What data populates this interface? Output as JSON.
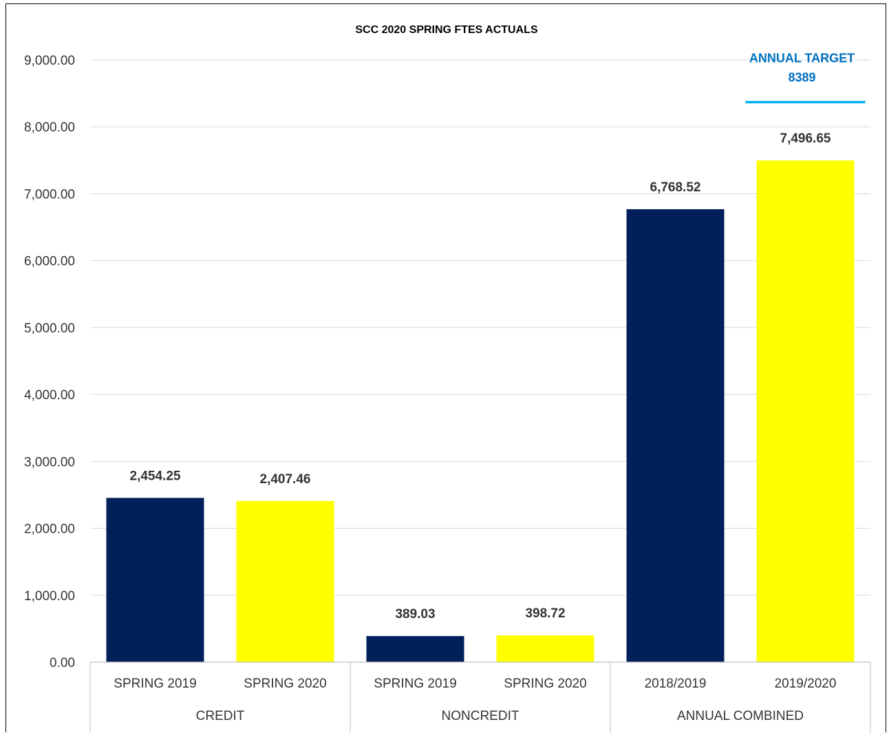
{
  "chart_data": {
    "type": "bar",
    "title": "SCC 2020 SPRING FTES ACTUALS",
    "xlabel": "",
    "ylabel": "",
    "ylim": [
      0,
      9000
    ],
    "yticks": [
      "0.00",
      "1,000.00",
      "2,000.00",
      "3,000.00",
      "4,000.00",
      "5,000.00",
      "6,000.00",
      "7,000.00",
      "8,000.00",
      "9,000.00"
    ],
    "grid": true,
    "legend": "none",
    "groups": [
      {
        "label": "CREDIT",
        "bars": [
          {
            "category": "SPRING 2019",
            "value": 2454.25,
            "label": "2,454.25",
            "color": "#001f5b"
          },
          {
            "category": "SPRING 2020",
            "value": 2407.46,
            "label": "2,407.46",
            "color": "#ffff00"
          }
        ]
      },
      {
        "label": "NONCREDIT",
        "bars": [
          {
            "category": "SPRING 2019",
            "value": 389.03,
            "label": "389.03",
            "color": "#001f5b"
          },
          {
            "category": "SPRING 2020",
            "value": 398.72,
            "label": "398.72",
            "color": "#ffff00"
          }
        ]
      },
      {
        "label": "ANNUAL COMBINED",
        "bars": [
          {
            "category": "2018/2019",
            "value": 6768.52,
            "label": "6,768.52",
            "color": "#001f5b"
          },
          {
            "category": "2019/2020",
            "value": 7496.65,
            "label": "7,496.65",
            "color": "#ffff00"
          }
        ]
      }
    ],
    "annotation": {
      "lines": [
        "ANNUAL TARGET",
        "8389"
      ],
      "value": 8389,
      "color": "#0070c0",
      "line_color": "#00b0f0"
    },
    "colors": {
      "gridline": "#d9d9d9",
      "axis": "#bfbfbf",
      "text": "#333333"
    }
  }
}
